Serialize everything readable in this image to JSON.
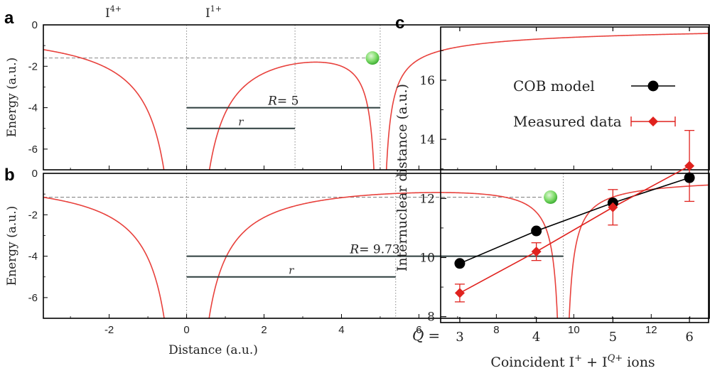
{
  "panels": {
    "a": "a",
    "b": "b",
    "c": "c"
  },
  "ion_labels": {
    "left": {
      "base": "I",
      "sup": "4+"
    },
    "right": {
      "base": "I",
      "sup": "1+"
    }
  },
  "colors": {
    "curve": "#e8413c",
    "cob": "#000000",
    "measured": "#e0221e",
    "electron": "#7fdc6a",
    "guide": "#888888"
  },
  "chart_data": [
    {
      "panel": "a",
      "type": "line",
      "description_none": "",
      "xlim": [
        -3.7,
        13.5
      ],
      "ylim": [
        -7,
        0
      ],
      "ylabel": "Energy (a.u.)",
      "yticks": [
        0,
        -2,
        -4,
        -6
      ],
      "R": 5,
      "nucleus_positions": [
        0,
        5
      ],
      "charges": [
        4,
        1
      ],
      "barrier_energy": -1.6,
      "electron_x": 4.8,
      "R_label": {
        "sym": "R",
        "rest": "= 5"
      },
      "r_label": "r",
      "r_value": 2.8
    },
    {
      "panel": "b",
      "type": "line",
      "xlim": [
        -3.7,
        13.5
      ],
      "ylim": [
        -7,
        0
      ],
      "xlabel": "Distance (a.u.)",
      "ylabel": "Energy (a.u.)",
      "xticks": [
        -2,
        0,
        2,
        4,
        6,
        8,
        10,
        12
      ],
      "yticks": [
        0,
        -2,
        -4,
        -6
      ],
      "R": 9.73,
      "nucleus_positions": [
        0,
        9.73
      ],
      "charges": [
        4,
        1
      ],
      "barrier_energy": -1.15,
      "electron_x": 9.4,
      "R_label": {
        "sym": "R",
        "rest": "= 9.73"
      },
      "r_label": "r",
      "r_value": 5.4
    },
    {
      "panel": "c",
      "type": "line",
      "xlabel": "Coincident I+ + IQ+ ions",
      "xlabel_parts": {
        "pre": "Coincident I",
        "sup1": "+",
        "mid": " + I",
        "sup2": "Q+",
        "post": " ions"
      },
      "q_label": {
        "sym": "Q",
        "eq": "="
      },
      "ylabel": "Internuclear distance (a.u.)",
      "categories": [
        3,
        4,
        5,
        6
      ],
      "xlim": [
        2.75,
        6.25
      ],
      "ylim": [
        7.8,
        17.8
      ],
      "yticks": [
        8,
        10,
        12,
        14,
        16
      ],
      "series": [
        {
          "name": "COB model",
          "marker": "circle",
          "values": [
            9.8,
            10.9,
            11.85,
            12.7
          ]
        },
        {
          "name": "Measured data",
          "marker": "diamond",
          "values": [
            8.8,
            10.2,
            11.7,
            13.1
          ],
          "err": [
            0.3,
            0.3,
            0.6,
            1.2
          ]
        }
      ],
      "legend": "top-right",
      "grid": false
    }
  ]
}
